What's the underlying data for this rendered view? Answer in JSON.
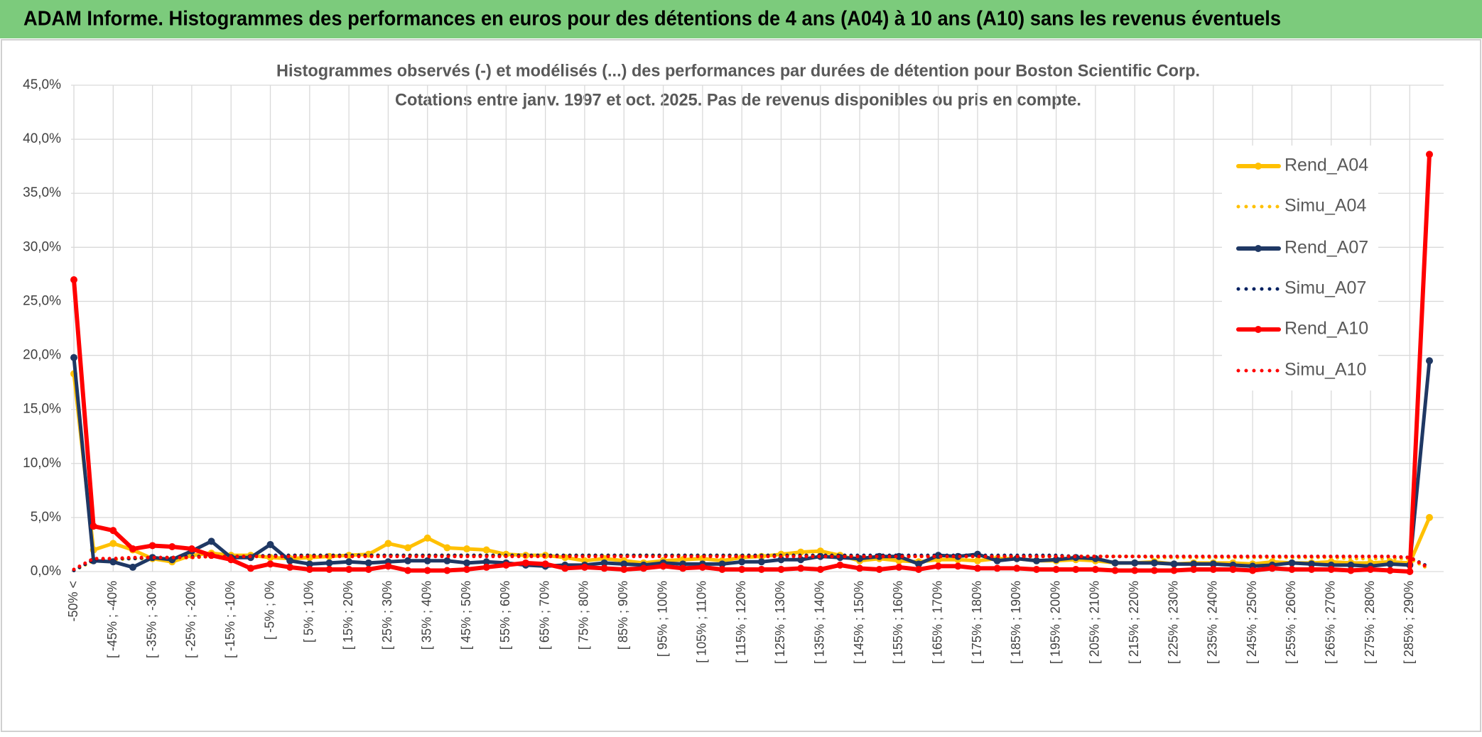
{
  "header": {
    "title": "ADAM Informe. Histogrammes des performances en euros pour des détentions de 4 ans (A04) à 10 ans (A10) sans les revenus éventuels"
  },
  "chart_data": {
    "type": "line",
    "title": "Histogrammes observés (-) et modélisés (...) des performances par durées de détention pour Boston Scientific Corp.",
    "subtitle": "Cotations entre janv. 1997 et oct. 2025. Pas de revenus disponibles ou pris en compte.",
    "categories": [
      "-50% <",
      null,
      "[ -45% ; -40%",
      null,
      "[ -35% ; -30%",
      null,
      "[ -25% ; -20%",
      null,
      "[ -15% ; -10%",
      null,
      "[ -5% ; 0%",
      null,
      "[ 5% ; 10%",
      null,
      "[ 15% ; 20%",
      null,
      "[ 25% ; 30%",
      null,
      "[ 35% ; 40%",
      null,
      "[ 45% ; 50%",
      null,
      "[ 55% ; 60%",
      null,
      "[ 65% ; 70%",
      null,
      "[ 75% ; 80%",
      null,
      "[ 85% ; 90%",
      null,
      "[ 95% ; 100%",
      null,
      "[ 105% ; 110%",
      null,
      "[ 115% ; 120%",
      null,
      "[ 125% ; 130%",
      null,
      "[ 135% ; 140%",
      null,
      "[ 145% ; 150%",
      null,
      "[ 155% ; 160%",
      null,
      "[ 165% ; 170%",
      null,
      "[ 175% ; 180%",
      null,
      "[ 185% ; 190%",
      null,
      "[ 195% ; 200%",
      null,
      "[ 205% ; 210%",
      null,
      "[ 215% ; 220%",
      null,
      "[ 225% ; 230%",
      null,
      "[ 235% ; 240%",
      null,
      "[ 245% ; 250%",
      null,
      "[ 255% ; 260%",
      null,
      "[ 265% ; 270%",
      null,
      "[ 275% ; 280%",
      null,
      "[ 285% ; 290%",
      null
    ],
    "series": [
      {
        "name": "Rend_A04",
        "color": "#ffc000",
        "line_style": "solid",
        "values": [
          18.3,
          2.0,
          2.6,
          2.0,
          1.2,
          0.9,
          1.5,
          1.7,
          1.5,
          1.5,
          1.3,
          1.2,
          1.3,
          1.4,
          1.5,
          1.6,
          2.6,
          2.2,
          3.1,
          2.2,
          2.1,
          2.0,
          1.6,
          1.5,
          1.5,
          1.3,
          1.0,
          1.2,
          1.0,
          0.8,
          1.0,
          1.1,
          1.2,
          1.0,
          1.3,
          1.4,
          1.6,
          1.8,
          1.9,
          1.5,
          1.0,
          1.2,
          1.0,
          0.9,
          1.1,
          1.1,
          1.0,
          1.2,
          1.2,
          1.0,
          1.0,
          1.1,
          1.0,
          0.8,
          0.8,
          0.9,
          0.7,
          0.8,
          0.8,
          0.8,
          0.7,
          0.9,
          0.8,
          0.8,
          0.9,
          0.8,
          0.8,
          0.9,
          0.8,
          5.0
        ]
      },
      {
        "name": "Simu_A04",
        "color": "#ffc000",
        "line_style": "dotted",
        "values": [
          0.1,
          1.0,
          1.1,
          1.2,
          1.2,
          1.3,
          1.3,
          1.4,
          1.4,
          1.4,
          1.4,
          1.5,
          1.5,
          1.5,
          1.5,
          1.5,
          1.5,
          1.5,
          1.5,
          1.5,
          1.5,
          1.5,
          1.5,
          1.5,
          1.5,
          1.5,
          1.5,
          1.5,
          1.5,
          1.5,
          1.5,
          1.5,
          1.5,
          1.5,
          1.5,
          1.5,
          1.5,
          1.5,
          1.5,
          1.5,
          1.4,
          1.4,
          1.4,
          1.4,
          1.4,
          1.4,
          1.4,
          1.4,
          1.4,
          1.4,
          1.4,
          1.4,
          1.4,
          1.4,
          1.4,
          1.3,
          1.3,
          1.3,
          1.3,
          1.3,
          1.3,
          1.3,
          1.3,
          1.3,
          1.3,
          1.2,
          1.2,
          1.2,
          1.2,
          0.2
        ]
      },
      {
        "name": "Rend_A07",
        "color": "#1f3864",
        "line_style": "solid",
        "values": [
          19.8,
          1.0,
          0.9,
          0.4,
          1.3,
          1.1,
          1.9,
          2.8,
          1.3,
          1.3,
          2.5,
          1.0,
          0.7,
          0.8,
          0.9,
          0.8,
          0.9,
          1.0,
          1.0,
          1.0,
          0.8,
          0.9,
          0.8,
          0.6,
          0.5,
          0.6,
          0.6,
          0.8,
          0.7,
          0.6,
          0.8,
          0.7,
          0.7,
          0.7,
          0.9,
          0.9,
          1.1,
          1.1,
          1.4,
          1.3,
          1.2,
          1.4,
          1.4,
          0.7,
          1.5,
          1.4,
          1.6,
          1.0,
          1.2,
          1.0,
          1.1,
          1.3,
          1.2,
          0.8,
          0.8,
          0.8,
          0.7,
          0.7,
          0.7,
          0.6,
          0.5,
          0.6,
          0.8,
          0.7,
          0.6,
          0.6,
          0.5,
          0.7,
          0.6,
          19.5
        ]
      },
      {
        "name": "Simu_A07",
        "color": "#002060",
        "line_style": "dotted",
        "values": [
          0.1,
          1.1,
          1.2,
          1.2,
          1.3,
          1.3,
          1.4,
          1.4,
          1.4,
          1.4,
          1.5,
          1.5,
          1.5,
          1.5,
          1.5,
          1.5,
          1.5,
          1.5,
          1.5,
          1.5,
          1.5,
          1.5,
          1.5,
          1.5,
          1.5,
          1.5,
          1.5,
          1.5,
          1.5,
          1.5,
          1.5,
          1.5,
          1.5,
          1.5,
          1.5,
          1.5,
          1.5,
          1.5,
          1.5,
          1.5,
          1.5,
          1.5,
          1.5,
          1.5,
          1.5,
          1.5,
          1.5,
          1.5,
          1.5,
          1.5,
          1.5,
          1.4,
          1.4,
          1.4,
          1.4,
          1.4,
          1.4,
          1.4,
          1.4,
          1.4,
          1.4,
          1.4,
          1.4,
          1.4,
          1.4,
          1.4,
          1.4,
          1.4,
          1.3,
          0.4
        ]
      },
      {
        "name": "Rend_A10",
        "color": "#ff0000",
        "line_style": "solid",
        "values": [
          27,
          4.2,
          3.8,
          2.1,
          2.4,
          2.3,
          2.1,
          1.5,
          1.1,
          0.3,
          0.7,
          0.4,
          0.2,
          0.2,
          0.2,
          0.2,
          0.5,
          0.1,
          0.1,
          0.1,
          0.2,
          0.4,
          0.6,
          0.8,
          0.7,
          0.3,
          0.4,
          0.3,
          0.2,
          0.3,
          0.5,
          0.3,
          0.4,
          0.2,
          0.2,
          0.2,
          0.2,
          0.3,
          0.2,
          0.6,
          0.3,
          0.2,
          0.4,
          0.2,
          0.5,
          0.5,
          0.3,
          0.3,
          0.3,
          0.2,
          0.2,
          0.2,
          0.2,
          0.1,
          0.1,
          0.1,
          0.1,
          0.2,
          0.2,
          0.2,
          0.1,
          0.3,
          0.2,
          0.2,
          0.2,
          0.1,
          0.2,
          0.1,
          0.0,
          38.6
        ]
      },
      {
        "name": "Simu_A10",
        "color": "#ff0000",
        "line_style": "dotted",
        "values": [
          0.2,
          1.2,
          1.2,
          1.3,
          1.3,
          1.3,
          1.3,
          1.4,
          1.4,
          1.4,
          1.4,
          1.4,
          1.4,
          1.4,
          1.4,
          1.4,
          1.4,
          1.4,
          1.4,
          1.4,
          1.4,
          1.4,
          1.4,
          1.4,
          1.4,
          1.4,
          1.4,
          1.4,
          1.4,
          1.4,
          1.4,
          1.4,
          1.4,
          1.4,
          1.4,
          1.4,
          1.4,
          1.4,
          1.4,
          1.4,
          1.4,
          1.4,
          1.4,
          1.4,
          1.4,
          1.4,
          1.4,
          1.4,
          1.4,
          1.4,
          1.4,
          1.4,
          1.4,
          1.4,
          1.4,
          1.4,
          1.4,
          1.4,
          1.4,
          1.4,
          1.4,
          1.4,
          1.4,
          1.4,
          1.4,
          1.4,
          1.4,
          1.4,
          1.3,
          0.3
        ]
      }
    ],
    "ylim": [
      0,
      45
    ],
    "yticks": [
      {
        "value": 0,
        "label": "0,0%"
      },
      {
        "value": 5,
        "label": "5,0%"
      },
      {
        "value": 10,
        "label": "10,0%"
      },
      {
        "value": 15,
        "label": "15,0%"
      },
      {
        "value": 20,
        "label": "20,0%"
      },
      {
        "value": 25,
        "label": "25,0%"
      },
      {
        "value": 30,
        "label": "30,0%"
      },
      {
        "value": 35,
        "label": "35,0%"
      },
      {
        "value": 40,
        "label": "40,0%"
      },
      {
        "value": 45,
        "label": "45,0%"
      }
    ],
    "grid": true,
    "legend": "upper right"
  }
}
